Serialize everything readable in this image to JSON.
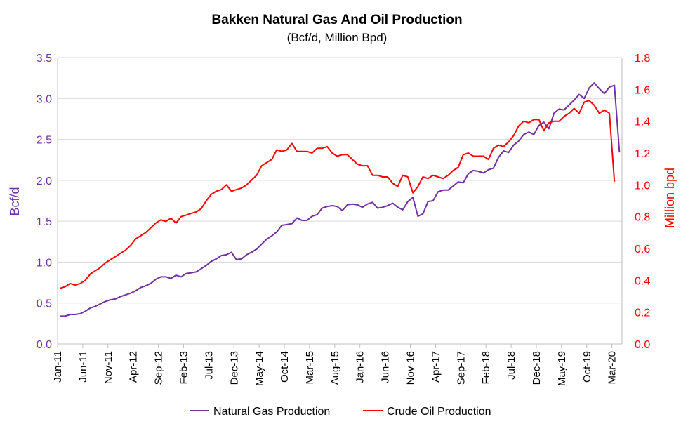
{
  "chart_data": {
    "type": "line",
    "title": "Bakken Natural Gas And Oil Production",
    "subtitle": "(Bcf/d, Million Bpd)",
    "y_left_label": "Bcf/d",
    "y_right_label": "Million bpd",
    "y_left_range": [
      0,
      3.5
    ],
    "y_left_ticks": [
      "0.0",
      "0.5",
      "1.0",
      "1.5",
      "2.0",
      "2.5",
      "3.0",
      "3.5"
    ],
    "y_right_range": [
      0,
      1.8
    ],
    "y_right_ticks": [
      "0.0",
      "0.2",
      "0.4",
      "0.6",
      "0.8",
      "1.0",
      "1.2",
      "1.4",
      "1.6",
      "1.8"
    ],
    "x_tick_labels": [
      "Jan-11",
      "Jun-11",
      "Nov-11",
      "Apr-12",
      "Sep-12",
      "Feb-13",
      "Jul-13",
      "Dec-13",
      "May-14",
      "Oct-14",
      "Mar-15",
      "Aug-15",
      "Jan-16",
      "Jun-16",
      "Nov-16",
      "Apr-17",
      "Sep-17",
      "Feb-18",
      "Jul-18",
      "Dec-18",
      "May-19",
      "Oct-19",
      "Mar-20"
    ],
    "x_start": "Jan-11",
    "x_end": "May-20",
    "grid": "horizontal",
    "legend_position": "bottom",
    "series": [
      {
        "name": "Natural Gas Production",
        "axis": "left",
        "color": "#7030A0",
        "values": [
          0.34,
          0.34,
          0.36,
          0.36,
          0.37,
          0.4,
          0.44,
          0.46,
          0.49,
          0.52,
          0.54,
          0.55,
          0.58,
          0.6,
          0.62,
          0.65,
          0.69,
          0.71,
          0.74,
          0.79,
          0.82,
          0.82,
          0.8,
          0.84,
          0.82,
          0.86,
          0.87,
          0.88,
          0.92,
          0.96,
          1.01,
          1.04,
          1.08,
          1.09,
          1.12,
          1.03,
          1.04,
          1.09,
          1.12,
          1.16,
          1.22,
          1.28,
          1.32,
          1.37,
          1.45,
          1.46,
          1.47,
          1.54,
          1.51,
          1.51,
          1.56,
          1.58,
          1.66,
          1.68,
          1.69,
          1.68,
          1.63,
          1.7,
          1.71,
          1.7,
          1.67,
          1.71,
          1.73,
          1.66,
          1.67,
          1.69,
          1.72,
          1.67,
          1.64,
          1.74,
          1.79,
          1.56,
          1.59,
          1.74,
          1.75,
          1.86,
          1.88,
          1.88,
          1.93,
          1.98,
          1.97,
          2.08,
          2.12,
          2.11,
          2.09,
          2.13,
          2.15,
          2.28,
          2.36,
          2.34,
          2.43,
          2.48,
          2.56,
          2.59,
          2.56,
          2.67,
          2.71,
          2.63,
          2.82,
          2.87,
          2.86,
          2.92,
          2.98,
          3.05,
          3.0,
          3.13,
          3.19,
          3.12,
          3.06,
          3.14,
          3.16,
          2.34
        ]
      },
      {
        "name": "Crude Oil Production",
        "axis": "right",
        "color": "#FF0000",
        "values": [
          0.35,
          0.36,
          0.38,
          0.37,
          0.38,
          0.4,
          0.44,
          0.46,
          0.48,
          0.51,
          0.53,
          0.55,
          0.57,
          0.59,
          0.62,
          0.66,
          0.68,
          0.7,
          0.73,
          0.76,
          0.78,
          0.77,
          0.79,
          0.76,
          0.8,
          0.81,
          0.82,
          0.83,
          0.85,
          0.9,
          0.94,
          0.96,
          0.97,
          1.0,
          0.96,
          0.97,
          0.98,
          1.0,
          1.03,
          1.06,
          1.12,
          1.14,
          1.16,
          1.22,
          1.21,
          1.22,
          1.26,
          1.21,
          1.21,
          1.21,
          1.2,
          1.23,
          1.23,
          1.24,
          1.2,
          1.18,
          1.19,
          1.19,
          1.16,
          1.13,
          1.12,
          1.12,
          1.06,
          1.06,
          1.05,
          1.05,
          1.01,
          0.99,
          1.06,
          1.05,
          0.95,
          0.99,
          1.05,
          1.04,
          1.06,
          1.05,
          1.04,
          1.06,
          1.09,
          1.11,
          1.19,
          1.2,
          1.18,
          1.18,
          1.18,
          1.16,
          1.23,
          1.25,
          1.24,
          1.27,
          1.31,
          1.37,
          1.4,
          1.39,
          1.41,
          1.41,
          1.34,
          1.39,
          1.4,
          1.4,
          1.43,
          1.45,
          1.48,
          1.45,
          1.52,
          1.53,
          1.5,
          1.45,
          1.47,
          1.45,
          1.02
        ]
      }
    ]
  }
}
